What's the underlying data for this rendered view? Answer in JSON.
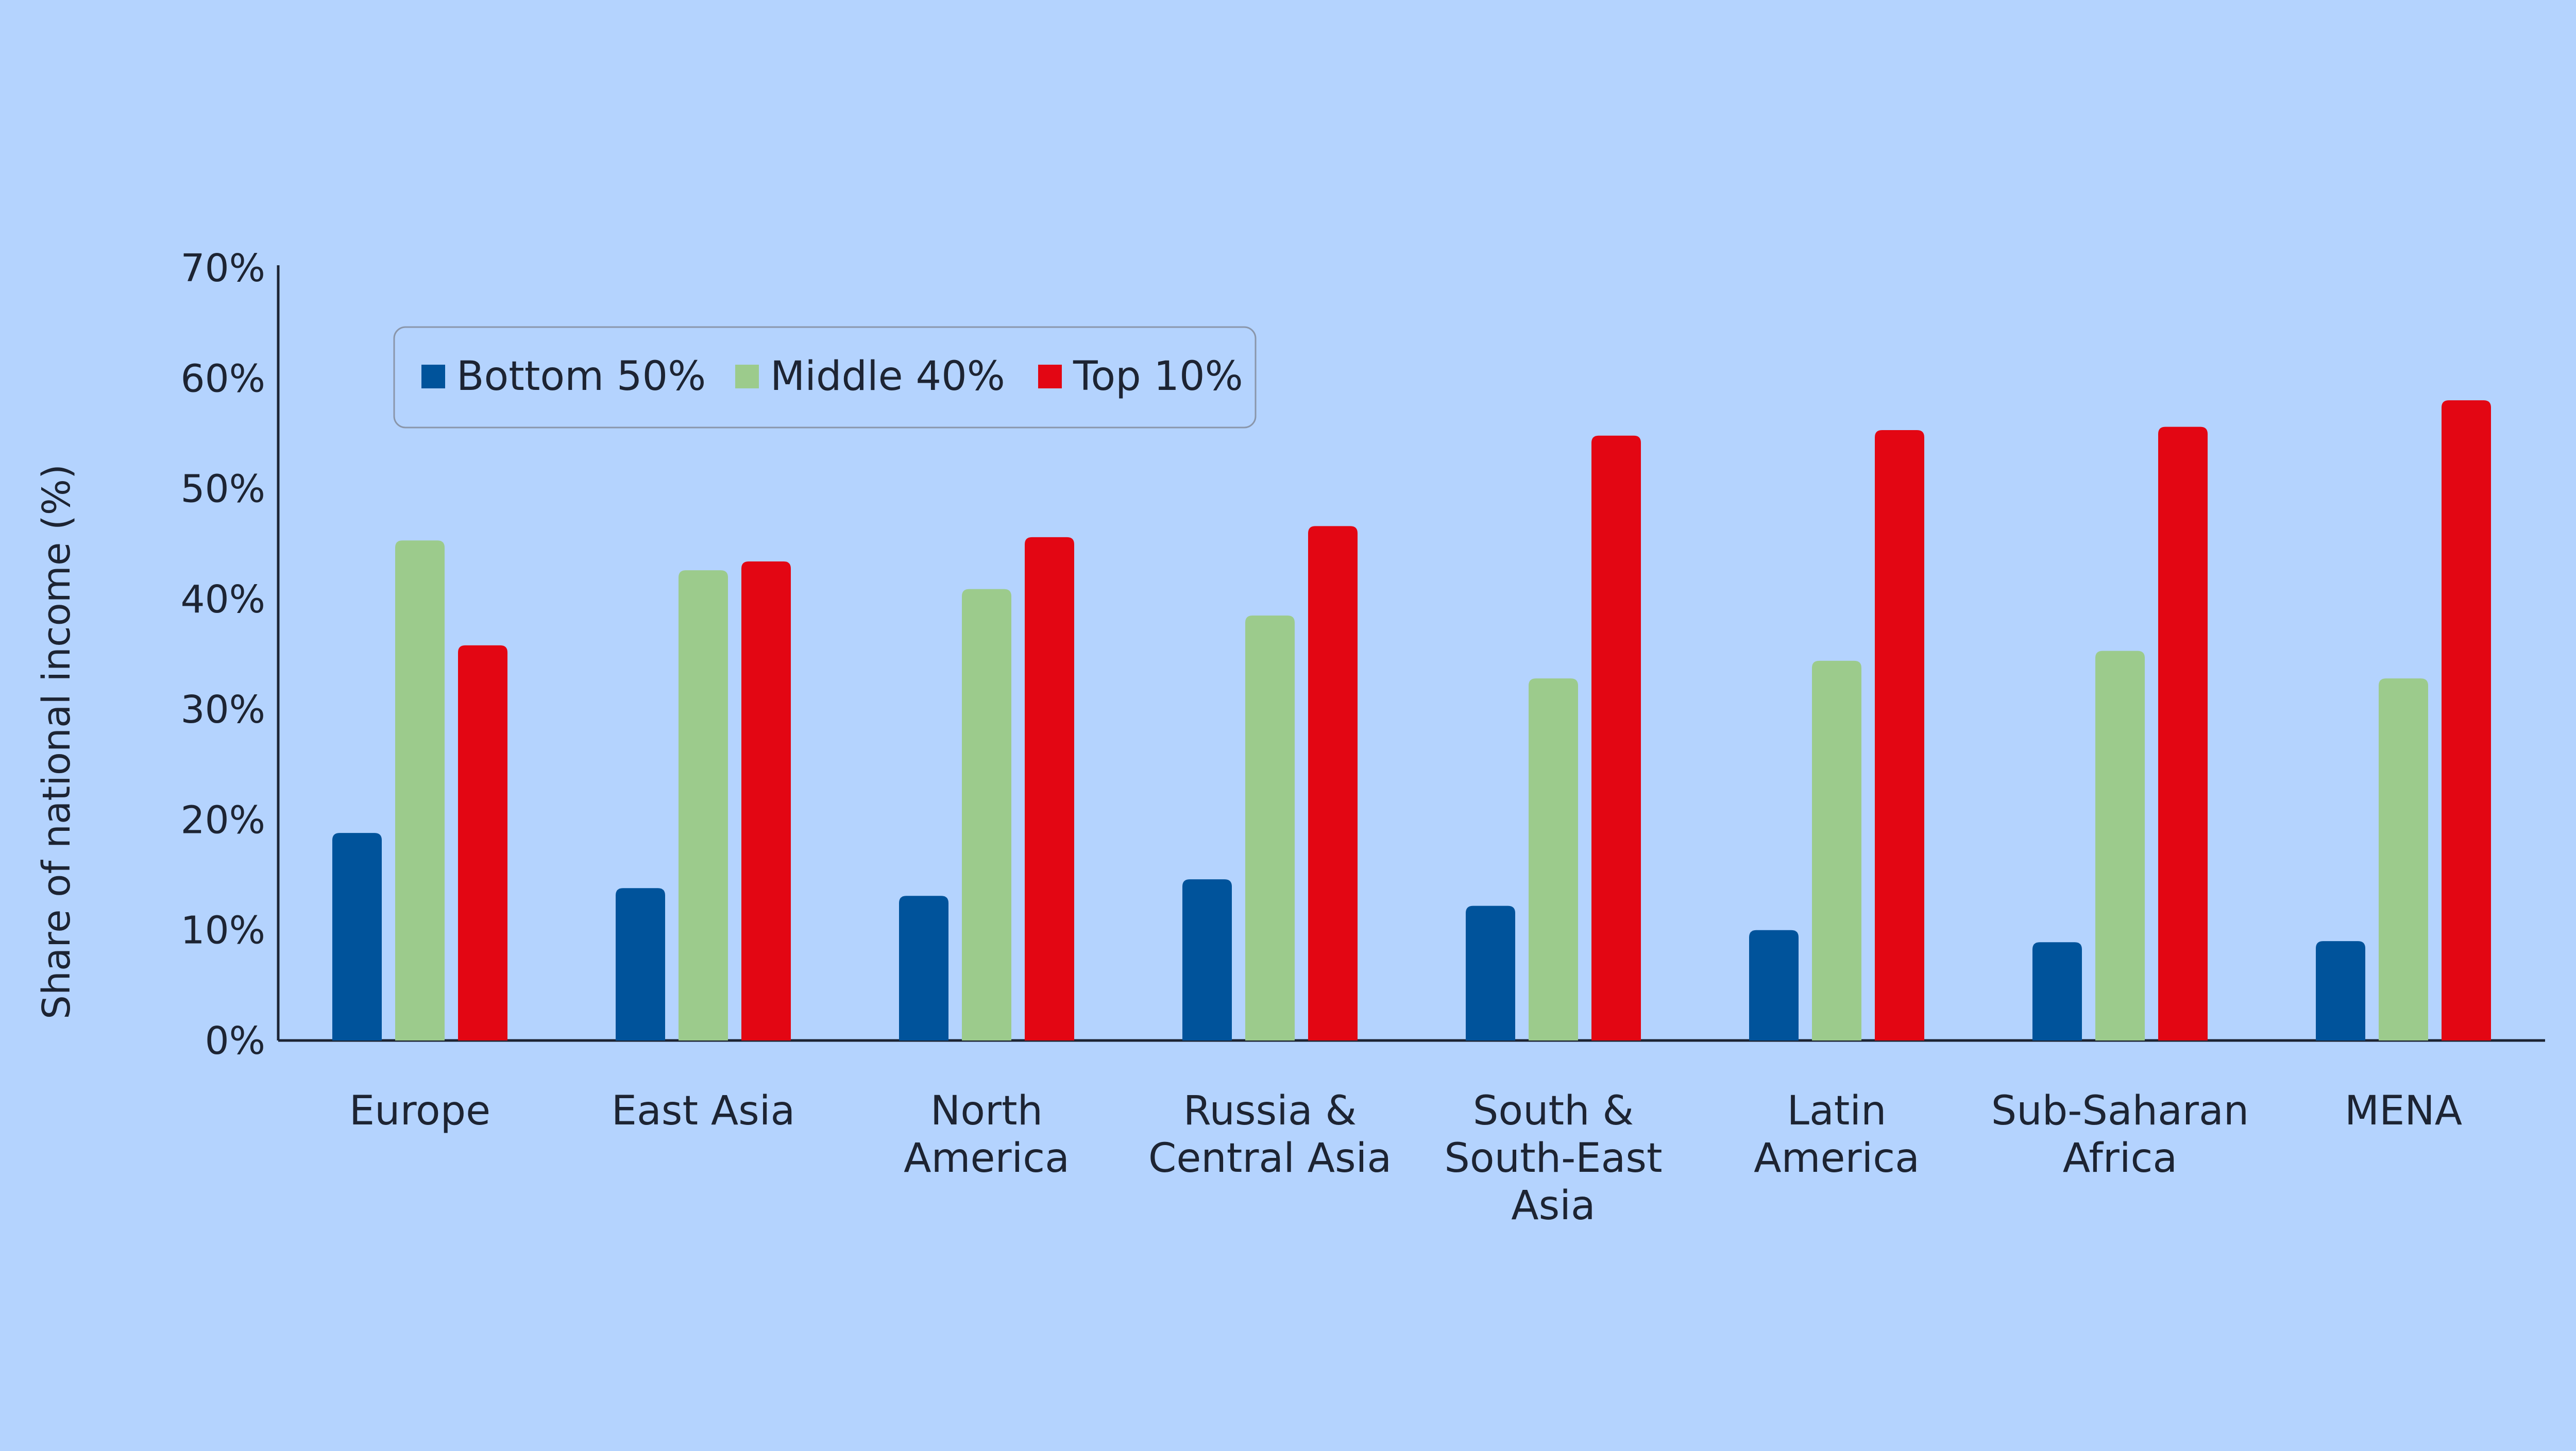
{
  "chart_data": {
    "type": "bar",
    "title": "",
    "ylabel": "Share of national income (%)",
    "xlabel": "",
    "ylim": [
      0,
      70
    ],
    "yticks": [
      0,
      10,
      20,
      30,
      40,
      50,
      60,
      70
    ],
    "ytick_labels": [
      "0%",
      "10%",
      "20%",
      "30%",
      "40%",
      "50%",
      "60%",
      "70%"
    ],
    "categories": [
      [
        "Europe"
      ],
      [
        "East Asia"
      ],
      [
        "North",
        "America"
      ],
      [
        "Russia &",
        "Central Asia"
      ],
      [
        "South &",
        "South-East",
        "Asia"
      ],
      [
        "Latin",
        "America"
      ],
      [
        "Sub-Saharan",
        "Africa"
      ],
      [
        "MENA"
      ]
    ],
    "series": [
      {
        "name": "Bottom 50%",
        "color": "#00539b",
        "values": [
          18.8,
          13.8,
          13.1,
          14.6,
          12.2,
          10.0,
          8.9,
          9.0
        ]
      },
      {
        "name": "Middle 40%",
        "color": "#9ccb8c",
        "values": [
          45.3,
          42.6,
          40.9,
          38.5,
          32.8,
          34.4,
          35.3,
          32.8
        ]
      },
      {
        "name": "Top 10%",
        "color": "#e30613",
        "values": [
          35.8,
          43.4,
          45.6,
          46.6,
          54.8,
          55.3,
          55.6,
          58.0
        ]
      }
    ],
    "legend": {
      "position": "top-left"
    },
    "grid": false
  }
}
